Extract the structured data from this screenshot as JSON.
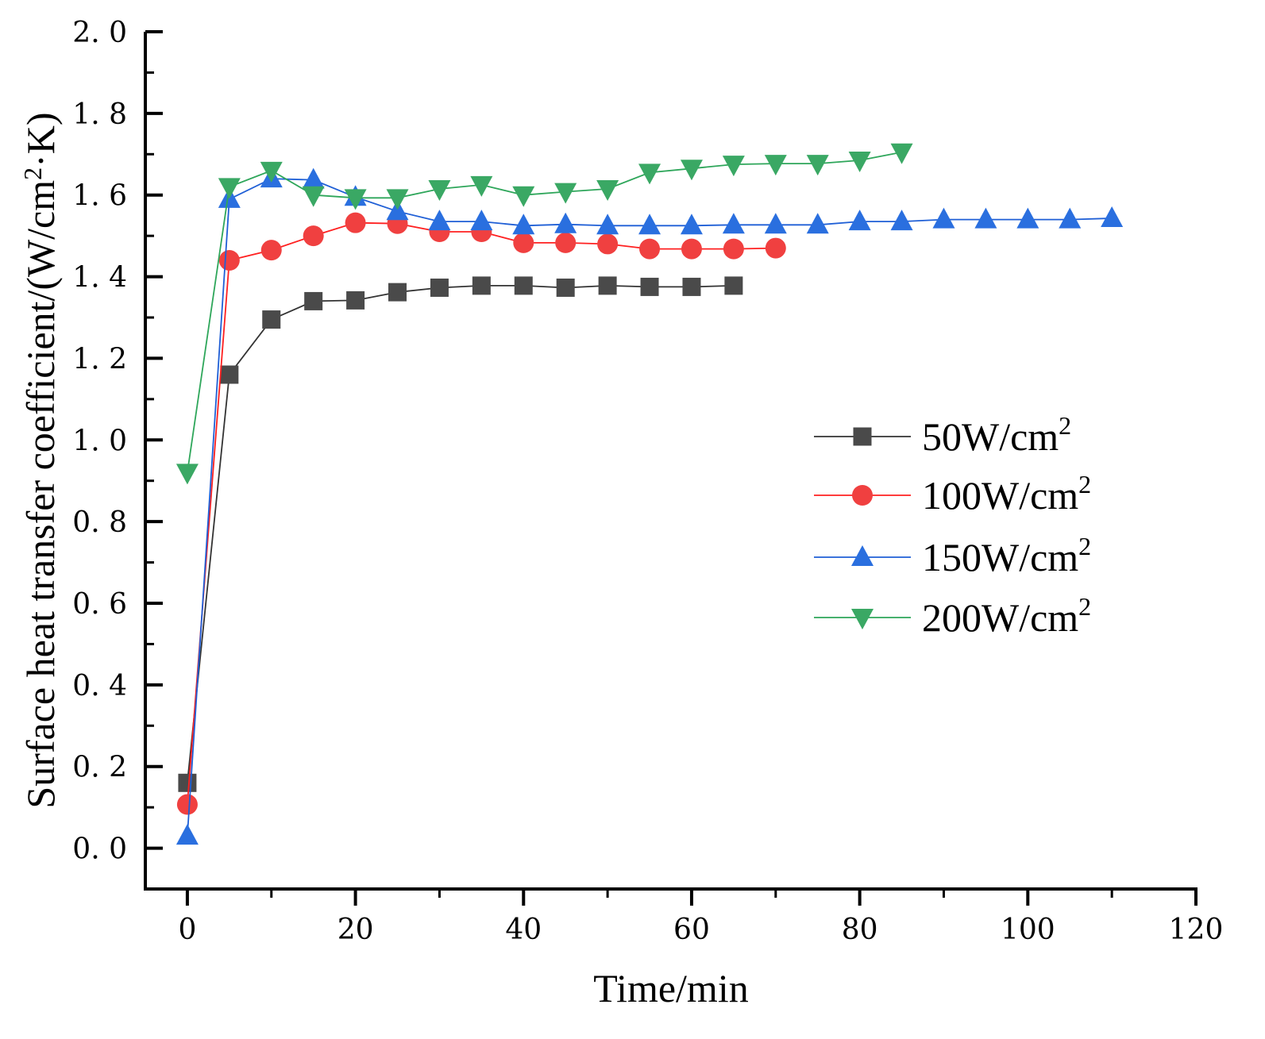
{
  "chart_data": {
    "type": "line",
    "title": "",
    "xlabel": "Time/min",
    "ylabel_parts": [
      "Surface heat transfer coefficient/(W/cm",
      "2",
      "·K)"
    ],
    "xlim": [
      -5,
      120
    ],
    "ylim": [
      -0.1,
      2.0
    ],
    "xticks": [
      0,
      20,
      40,
      60,
      80,
      100,
      120
    ],
    "xtick_labels": [
      "0",
      "20",
      "40",
      "60",
      "80",
      "100",
      "120"
    ],
    "yticks": [
      0.0,
      0.2,
      0.4,
      0.6,
      0.8,
      1.0,
      1.2,
      1.4,
      1.6,
      1.8,
      2.0
    ],
    "ytick_labels": [
      "0. 0",
      "0. 2",
      "0. 4",
      "0. 6",
      "0. 8",
      "1. 0",
      "1. 2",
      "1. 4",
      "1. 6",
      "1. 8",
      "2. 0"
    ],
    "legend_position": "right-middle",
    "grid": false,
    "series": [
      {
        "name": "50W/cm",
        "sup": "2",
        "color": "#333333",
        "marker_color": "#4a4a4a",
        "marker": "square",
        "x": [
          0,
          5,
          10,
          15,
          20,
          25,
          30,
          35,
          40,
          45,
          50,
          55,
          60,
          65
        ],
        "y": [
          0.16,
          1.16,
          1.295,
          1.34,
          1.342,
          1.362,
          1.373,
          1.378,
          1.378,
          1.373,
          1.378,
          1.375,
          1.375,
          1.378
        ]
      },
      {
        "name": "100W/cm",
        "sup": "2",
        "color": "#ff2020",
        "marker_color": "#f04040",
        "marker": "circle",
        "x": [
          0,
          5,
          10,
          15,
          20,
          25,
          30,
          35,
          40,
          45,
          50,
          55,
          60,
          65,
          70
        ],
        "y": [
          0.107,
          1.44,
          1.465,
          1.5,
          1.532,
          1.53,
          1.51,
          1.51,
          1.483,
          1.483,
          1.48,
          1.468,
          1.468,
          1.468,
          1.47
        ]
      },
      {
        "name": "150W/cm",
        "sup": "2",
        "color": "#1f5fd6",
        "marker_color": "#2a6fdf",
        "marker": "triangle-up",
        "x": [
          0,
          5,
          10,
          15,
          20,
          25,
          30,
          35,
          40,
          45,
          50,
          55,
          60,
          65,
          70,
          75,
          80,
          85,
          90,
          95,
          100,
          105,
          110
        ],
        "y": [
          0.03,
          1.59,
          1.64,
          1.637,
          1.595,
          1.56,
          1.535,
          1.535,
          1.525,
          1.528,
          1.525,
          1.525,
          1.525,
          1.527,
          1.527,
          1.527,
          1.535,
          1.535,
          1.54,
          1.54,
          1.54,
          1.54,
          1.543
        ]
      },
      {
        "name": "200W/cm",
        "sup": "2",
        "color": "#2ea65a",
        "marker_color": "#3aa864",
        "marker": "triangle-down",
        "x": [
          0,
          5,
          10,
          15,
          20,
          25,
          30,
          35,
          40,
          45,
          50,
          55,
          60,
          65,
          70,
          75,
          80,
          85
        ],
        "y": [
          0.92,
          1.62,
          1.66,
          1.6,
          1.593,
          1.593,
          1.615,
          1.625,
          1.6,
          1.608,
          1.615,
          1.655,
          1.665,
          1.675,
          1.677,
          1.677,
          1.685,
          1.705
        ]
      }
    ]
  }
}
